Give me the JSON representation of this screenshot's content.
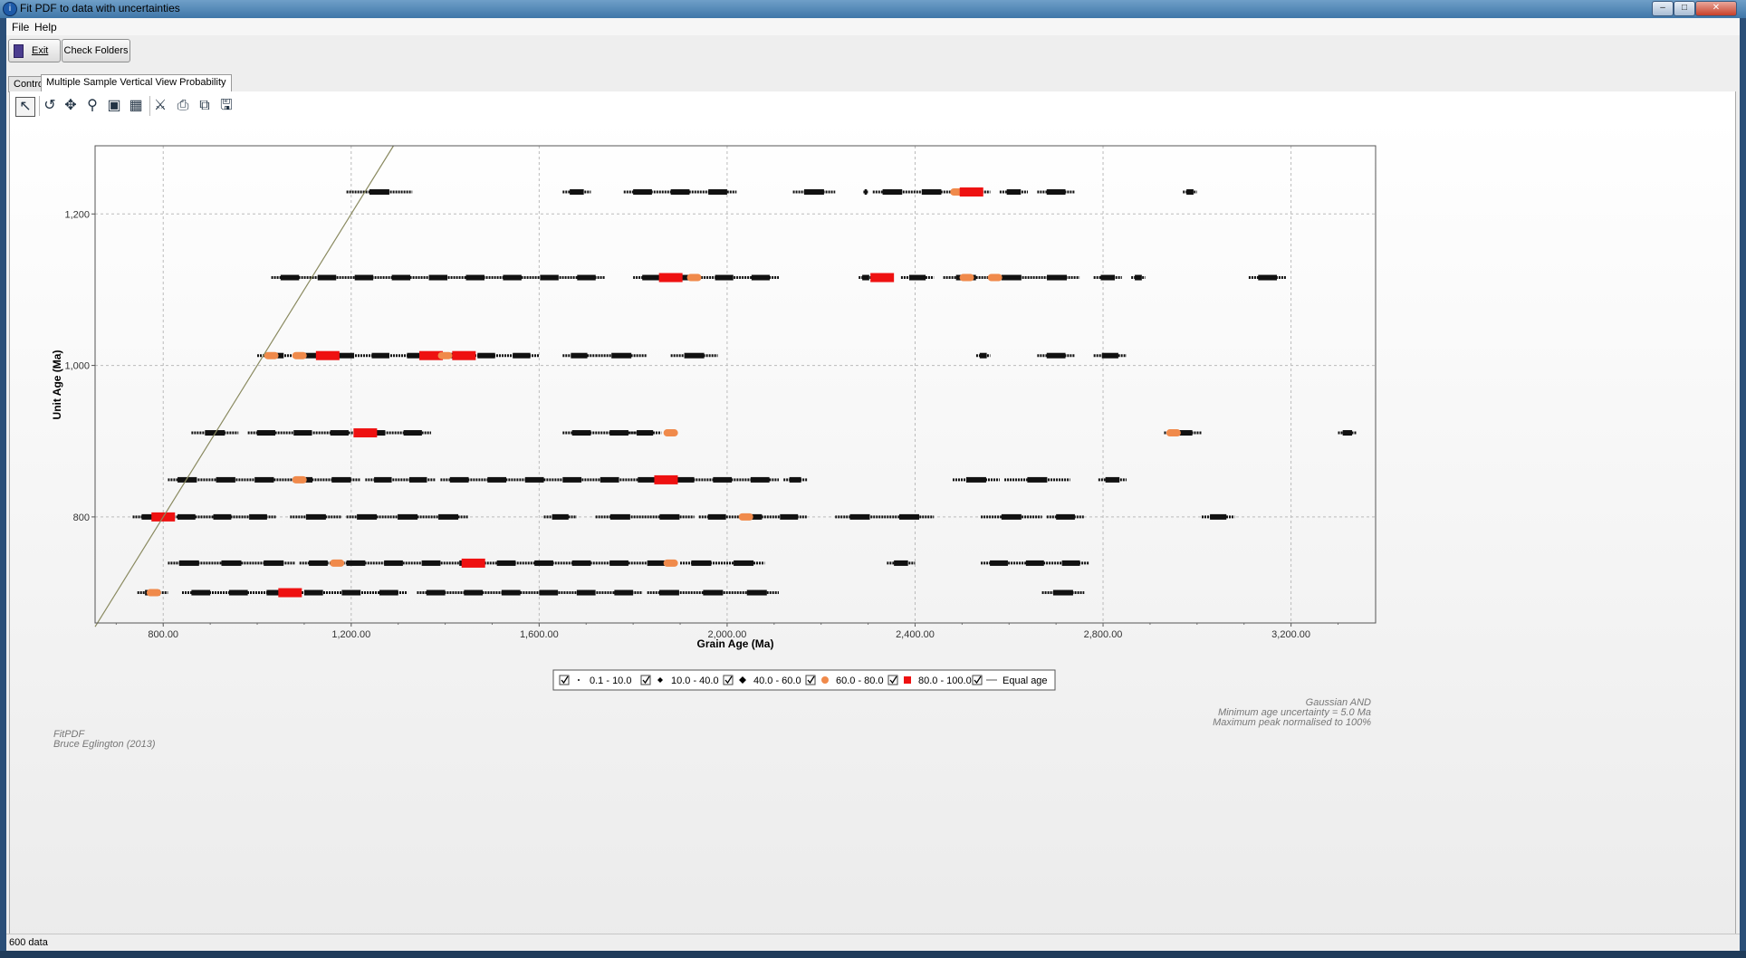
{
  "window": {
    "title": "Fit PDF to data with uncertainties",
    "app_icon": "app-icon",
    "controls": [
      "minimize",
      "maximize",
      "close"
    ]
  },
  "menu": [
    "File",
    "Help"
  ],
  "toolbar": {
    "exit_label": "Exit",
    "check_folders_label": "Check Folders"
  },
  "tabs": [
    {
      "label": "Control",
      "selected": false
    },
    {
      "label": "Multiple Sample Vertical View Probability",
      "selected": true
    }
  ],
  "chart_tools": [
    "pointer-icon",
    "undo-icon",
    "pan-icon",
    "zoom-icon",
    "zoom-to-fit-icon",
    "table-icon",
    "properties-icon",
    "print-icon",
    "copy-icon",
    "save-icon"
  ],
  "chart_data": {
    "type": "scatter",
    "xlabel": "Grain Age (Ma)",
    "ylabel": "Unit Age (Ma)",
    "xlim": [
      655,
      3380
    ],
    "ylim": [
      1290,
      660
    ],
    "x_ticks": [
      "800.00",
      "1,200.00",
      "1,600.00",
      "2,000.00",
      "2,400.00",
      "2,800.00",
      "3,200.00"
    ],
    "y_ticks": [
      "800",
      "1,000",
      "1,200"
    ],
    "grid": true,
    "equal_age_line": {
      "name": "Equal age",
      "color": "#8a8a60"
    },
    "legend": [
      {
        "label": "0.1 - 10.0",
        "marker": "dot",
        "checked": true
      },
      {
        "label": "10.0 - 40.0",
        "marker": "small-diamond",
        "checked": true
      },
      {
        "label": "40.0 - 60.0",
        "marker": "diamond",
        "checked": true
      },
      {
        "label": "60.0 - 80.0",
        "marker": "circle",
        "checked": true,
        "color": "#f08a4b"
      },
      {
        "label": "80.0 - 100.0",
        "marker": "square",
        "checked": true,
        "color": "#ee1111"
      },
      {
        "label": "Equal age",
        "marker": "line",
        "checked": true
      }
    ],
    "series": [
      {
        "unit_age": 700,
        "ranges": [
          [
            745,
            810
          ],
          [
            840,
            1320
          ],
          [
            1340,
            1820
          ],
          [
            1830,
            2110
          ],
          [
            2670,
            2760
          ]
        ],
        "peaks": [
          [
            780,
            70
          ],
          [
            1070,
            100
          ]
        ]
      },
      {
        "unit_age": 739,
        "ranges": [
          [
            810,
            1080
          ],
          [
            1090,
            1890
          ],
          [
            1900,
            2080
          ],
          [
            2340,
            2400
          ],
          [
            2540,
            2770
          ]
        ],
        "peaks": [
          [
            1170,
            70
          ],
          [
            1460,
            100
          ],
          [
            1880,
            70
          ]
        ]
      },
      {
        "unit_age": 800,
        "ranges": [
          [
            735,
            1040
          ],
          [
            1070,
            1180
          ],
          [
            1190,
            1450
          ],
          [
            1610,
            1680
          ],
          [
            1720,
            1930
          ],
          [
            1940,
            2170
          ],
          [
            2230,
            2440
          ],
          [
            2540,
            2670
          ],
          [
            2680,
            2760
          ],
          [
            3010,
            3080
          ]
        ],
        "peaks": [
          [
            800,
            100
          ],
          [
            2040,
            70
          ]
        ]
      },
      {
        "unit_age": 849,
        "ranges": [
          [
            810,
            1220
          ],
          [
            1230,
            1380
          ],
          [
            1390,
            2110
          ],
          [
            2120,
            2170
          ],
          [
            2480,
            2580
          ],
          [
            2590,
            2730
          ],
          [
            2790,
            2850
          ]
        ],
        "peaks": [
          [
            1090,
            70
          ],
          [
            1870,
            100
          ]
        ]
      },
      {
        "unit_age": 911,
        "ranges": [
          [
            860,
            960
          ],
          [
            980,
            1370
          ],
          [
            1650,
            1810
          ],
          [
            1790,
            1860
          ],
          [
            2930,
            3010
          ],
          [
            3300,
            3340
          ]
        ],
        "peaks": [
          [
            1230,
            100
          ],
          [
            1880,
            70
          ],
          [
            2950,
            70
          ]
        ]
      },
      {
        "unit_age": 1013,
        "ranges": [
          [
            1000,
            1600
          ],
          [
            1650,
            1720
          ],
          [
            1720,
            1830
          ],
          [
            1880,
            1980
          ],
          [
            2530,
            2560
          ],
          [
            2660,
            2740
          ],
          [
            2780,
            2850
          ]
        ],
        "peaks": [
          [
            1030,
            70
          ],
          [
            1090,
            70
          ],
          [
            1150,
            100
          ],
          [
            1370,
            100
          ],
          [
            1400,
            70
          ],
          [
            1440,
            100
          ]
        ]
      },
      {
        "unit_age": 1116,
        "ranges": [
          [
            1030,
            1740
          ],
          [
            1800,
            2110
          ],
          [
            2280,
            2310
          ],
          [
            2320,
            2350
          ],
          [
            2370,
            2440
          ],
          [
            2460,
            2750
          ],
          [
            2780,
            2840
          ],
          [
            2860,
            2890
          ],
          [
            3110,
            3190
          ]
        ],
        "peaks": [
          [
            1880,
            100
          ],
          [
            1930,
            70
          ],
          [
            2330,
            100
          ],
          [
            2510,
            70
          ],
          [
            2570,
            70
          ]
        ]
      },
      {
        "unit_age": 1229,
        "ranges": [
          [
            1190,
            1330
          ],
          [
            1650,
            1710
          ],
          [
            1780,
            2020
          ],
          [
            2140,
            2230
          ],
          [
            2290,
            2300
          ],
          [
            2310,
            2560
          ],
          [
            2580,
            2640
          ],
          [
            2660,
            2740
          ],
          [
            2970,
            3000
          ]
        ],
        "peaks": [
          [
            2490,
            70
          ],
          [
            2520,
            100
          ]
        ]
      }
    ]
  },
  "annotations": {
    "method": "Gaussian AND",
    "uncertainty": "Minimum age uncertainty = 5.0 Ma",
    "normalisation": "Maximum peak normalised to 100%",
    "software": "FitPDF",
    "author": "Bruce Eglington (2013)"
  },
  "status": "600 data"
}
